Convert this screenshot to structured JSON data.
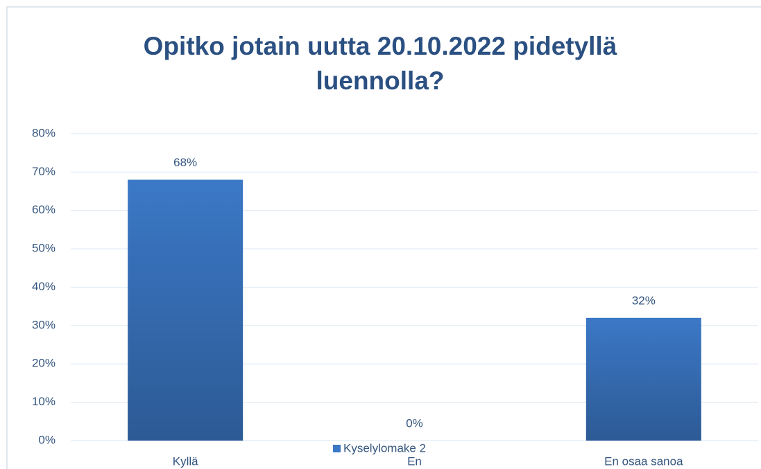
{
  "chart_data": {
    "type": "bar",
    "title": "Opitko jotain uutta 20.10.2022 pidetyllä luennolla?",
    "categories": [
      "Kyllä",
      "En",
      "En osaa sanoa"
    ],
    "series": [
      {
        "name": "Kyselylomake 2",
        "color": "#3b78c6",
        "values": [
          68,
          0,
          32
        ],
        "value_labels": [
          "68%",
          "0%",
          "32%"
        ]
      }
    ],
    "ylim": [
      0,
      80
    ],
    "yticks": [
      {
        "value": 0,
        "label": "0%"
      },
      {
        "value": 10,
        "label": "10%"
      },
      {
        "value": 20,
        "label": "20%"
      },
      {
        "value": 30,
        "label": "30%"
      },
      {
        "value": 40,
        "label": "40%"
      },
      {
        "value": 50,
        "label": "50%"
      },
      {
        "value": 60,
        "label": "60%"
      },
      {
        "value": 70,
        "label": "70%"
      },
      {
        "value": 80,
        "label": "80%"
      }
    ],
    "grid": true,
    "legend": "bottom"
  }
}
